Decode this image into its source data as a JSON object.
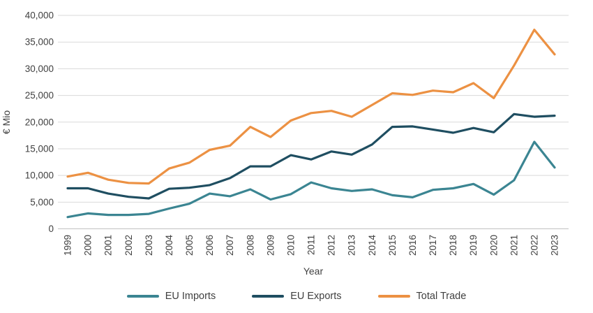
{
  "chart_data": {
    "type": "line",
    "x": [
      1999,
      2000,
      2001,
      2002,
      2003,
      2004,
      2005,
      2006,
      2007,
      2008,
      2009,
      2010,
      2011,
      2012,
      2013,
      2014,
      2015,
      2016,
      2017,
      2018,
      2019,
      2020,
      2021,
      2022,
      2023
    ],
    "series": [
      {
        "name": "EU Imports",
        "color": "#3B8592",
        "values": [
          2200,
          2900,
          2600,
          2600,
          2800,
          3800,
          4700,
          6600,
          6100,
          7400,
          5500,
          6500,
          8700,
          7600,
          7100,
          7400,
          6300,
          5900,
          7300,
          7600,
          8400,
          6400,
          9100,
          16300,
          11500
        ]
      },
      {
        "name": "EU Exports",
        "color": "#1F4E61",
        "values": [
          7600,
          7600,
          6600,
          6000,
          5700,
          7500,
          7700,
          8200,
          9500,
          11700,
          11700,
          13800,
          13000,
          14500,
          13900,
          15800,
          19100,
          19200,
          18600,
          18000,
          18900,
          18100,
          21500,
          21000,
          21200
        ]
      },
      {
        "name": "Total Trade",
        "color": "#EC9143",
        "values": [
          9800,
          10500,
          9200,
          8600,
          8500,
          11300,
          12400,
          14800,
          15600,
          19100,
          17200,
          20300,
          21700,
          22100,
          21000,
          23200,
          25400,
          25100,
          25900,
          25600,
          27300,
          24500,
          30600,
          37300,
          32700
        ]
      }
    ],
    "title": "",
    "xlabel": "Year",
    "ylabel": "€ Mio",
    "ylim": [
      0,
      40000
    ],
    "ytick_step": 5000,
    "ytick_labels": [
      "0",
      "5,000",
      "10,000",
      "15,000",
      "20,000",
      "25,000",
      "30,000",
      "35,000",
      "40,000"
    ],
    "grid": true,
    "legend_position": "bottom"
  },
  "style": {
    "text_color": "#404040",
    "gridline_color": "#D9D9D9",
    "axis_color": "#C0C0C0"
  }
}
